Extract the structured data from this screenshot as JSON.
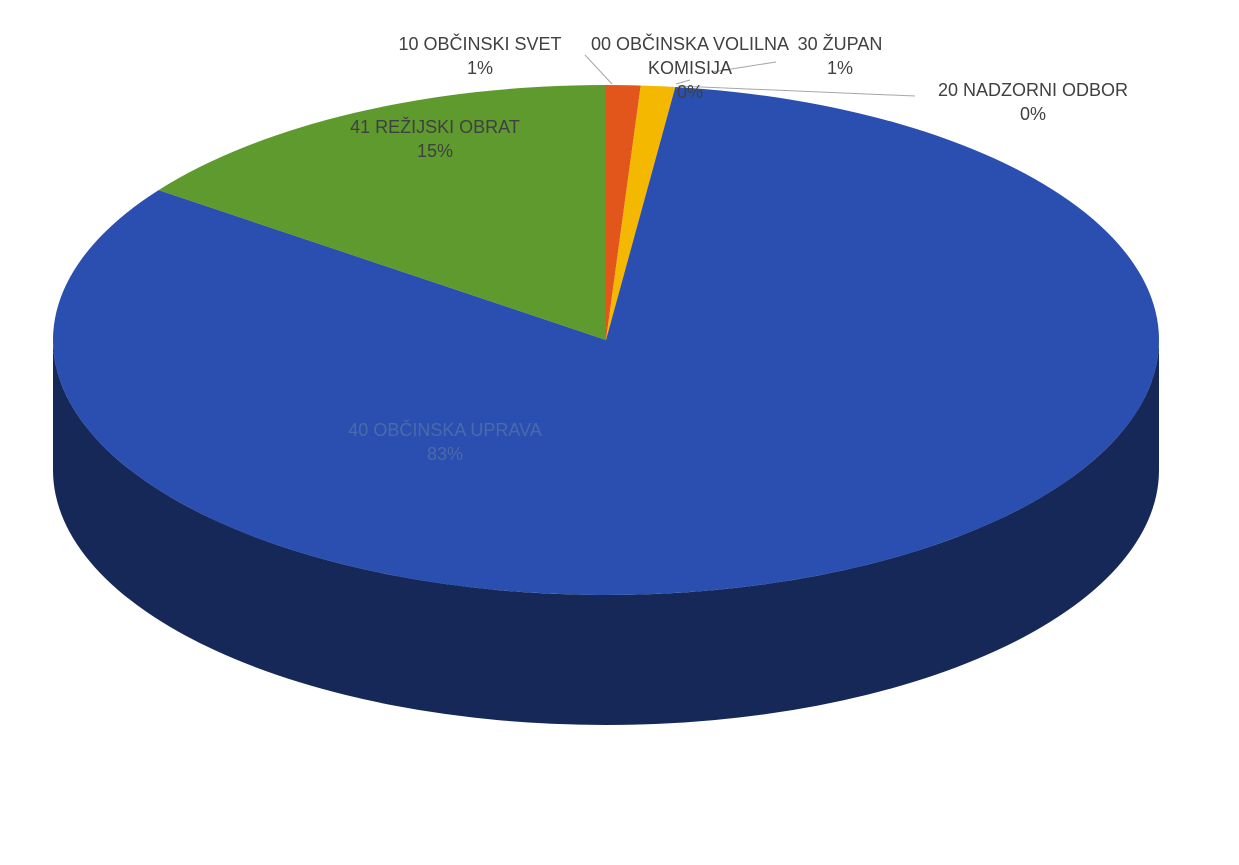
{
  "chart_data": {
    "type": "pie3d",
    "categories": [
      "00 OBČINSKA VOLILNA KOMISIJA",
      "10 OBČINSKI SVET",
      "20 NADZORNI ODBOR",
      "30 ŽUPAN",
      "40 OBČINSKA UPRAVA",
      "41 REŽIJSKI OBRAT"
    ],
    "values": [
      0,
      1,
      0,
      1,
      83,
      15
    ],
    "value_labels": [
      "0%",
      "1%",
      "0%",
      "1%",
      "83%",
      "15%"
    ],
    "colors": [
      "#3b6fd6",
      "#e2561c",
      "#9aa3ad",
      "#f5b800",
      "#2a4fb0",
      "#5e9a2e"
    ]
  }
}
